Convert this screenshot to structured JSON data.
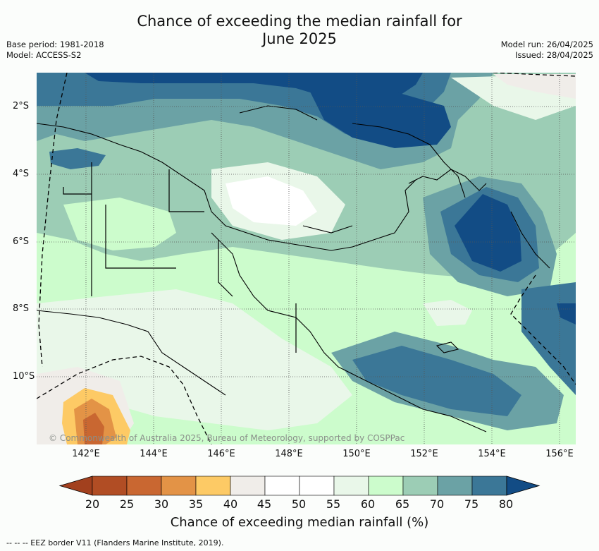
{
  "title_line1": "Chance of exceeding the median rainfall for",
  "title_line2": "June 2025",
  "meta_left": {
    "base_period": "Base period: 1981-2018",
    "model": "Model: ACCESS-S2"
  },
  "meta_right": {
    "model_run": "Model run: 26/04/2025",
    "issued": "Issued: 28/04/2025"
  },
  "map": {
    "lat_labels": [
      "2°S",
      "4°S",
      "6°S",
      "8°S",
      "10°S"
    ],
    "lon_labels": [
      "142°E",
      "144°E",
      "146°E",
      "148°E",
      "150°E",
      "152°E",
      "154°E",
      "156°E"
    ],
    "copyright": "© Commonwealth of Australia 2025, Bureau of Meteorology, supported by COSPPac"
  },
  "colorbar": {
    "label": "Chance of exceeding median rainfall (%)",
    "ticks": [
      "20",
      "25",
      "30",
      "35",
      "40",
      "45",
      "50",
      "55",
      "60",
      "65",
      "70",
      "75",
      "80"
    ],
    "colors": [
      "#a2401e",
      "#b14d24",
      "#c96731",
      "#e39346",
      "#fdca65",
      "#f0ede9",
      "#ffffff",
      "#ffffff",
      "#e9f7e9",
      "#ccfccc",
      "#9ccdb5",
      "#6ba2a5",
      "#3b7797",
      "#124c85"
    ]
  },
  "legend_note": "--  --  -- EEZ border V11 (Flanders Marine Institute, 2019)."
}
